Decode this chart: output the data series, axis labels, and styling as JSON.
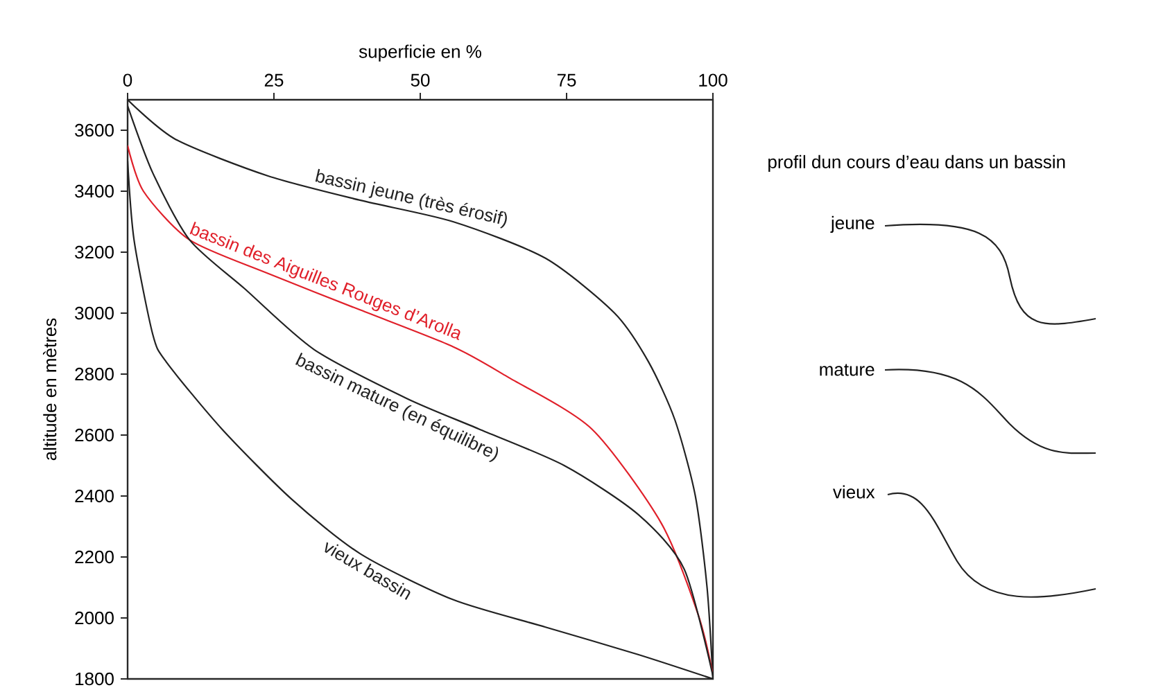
{
  "chart_data": {
    "type": "line",
    "xlabel": "superficie en %",
    "ylabel": "altitude en mètres",
    "xlim": [
      0,
      100
    ],
    "ylim": [
      1800,
      3700
    ],
    "xticks": [
      0,
      25,
      50,
      75,
      100
    ],
    "yticks": [
      1800,
      2000,
      2200,
      2400,
      2600,
      2800,
      3000,
      3200,
      3400,
      3600
    ],
    "series": [
      {
        "name": "bassin jeune (très érosif)",
        "color": "#222222",
        "x": [
          0,
          8.2,
          24,
          39.8,
          55.6,
          71.4,
          83.2,
          89,
          93.5,
          97,
          99,
          100
        ],
        "values": [
          3700,
          3570,
          3450,
          3370,
          3300,
          3180,
          3000,
          2840,
          2650,
          2400,
          2100,
          1800
        ]
      },
      {
        "name": "bassin des Aiguilles Rouges d’Arolla",
        "color": "#e0202a",
        "x": [
          0,
          2.7,
          10.6,
          24,
          39.8,
          55.6,
          65,
          79.3,
          91.2,
          97.5,
          100
        ],
        "values": [
          3550,
          3400,
          3240,
          3130,
          3010,
          2890,
          2790,
          2620,
          2310,
          2010,
          1815
        ]
      },
      {
        "name": "bassin mature (en équilibre)",
        "color": "#222222",
        "x": [
          0,
          4.3,
          10.6,
          20,
          31.9,
          47.7,
          60,
          74.6,
          87.2,
          95.1,
          100
        ],
        "values": [
          3680,
          3460,
          3240,
          3080,
          2880,
          2720,
          2620,
          2500,
          2340,
          2160,
          1810
        ]
      },
      {
        "name": "vieux bassin",
        "color": "#222222",
        "x": [
          0,
          1.1,
          4.3,
          6.6,
          16.1,
          28,
          39.8,
          55.6,
          71.4,
          87.2,
          100
        ],
        "values": [
          3500,
          3240,
          2930,
          2840,
          2620,
          2390,
          2210,
          2060,
          1970,
          1880,
          1800
        ]
      }
    ],
    "annotations": [
      "profil dun cours d’eau dans un bassin",
      "jeune",
      "mature",
      "vieux"
    ],
    "grid": false,
    "legend": false
  }
}
